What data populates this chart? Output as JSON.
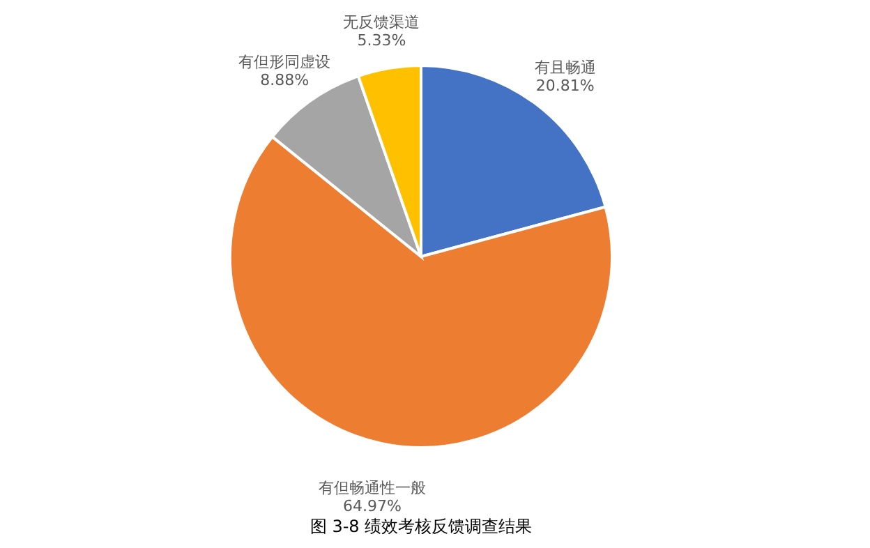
{
  "chart_data": {
    "type": "pie",
    "categories": [
      "有且畅通",
      "有但畅通性一般",
      "有但形同虚设",
      "无反馈渠道"
    ],
    "values": [
      20.81,
      64.97,
      8.88,
      5.33
    ],
    "colors": [
      "#4472c4",
      "#ed7d31",
      "#a5a5a5",
      "#ffc000"
    ],
    "value_labels": [
      "20.81%",
      "64.97%",
      "8.88%",
      "5.33%"
    ],
    "annotations": [
      "图 3-8 绩效考核反馈调查结果"
    ],
    "legend": false
  }
}
